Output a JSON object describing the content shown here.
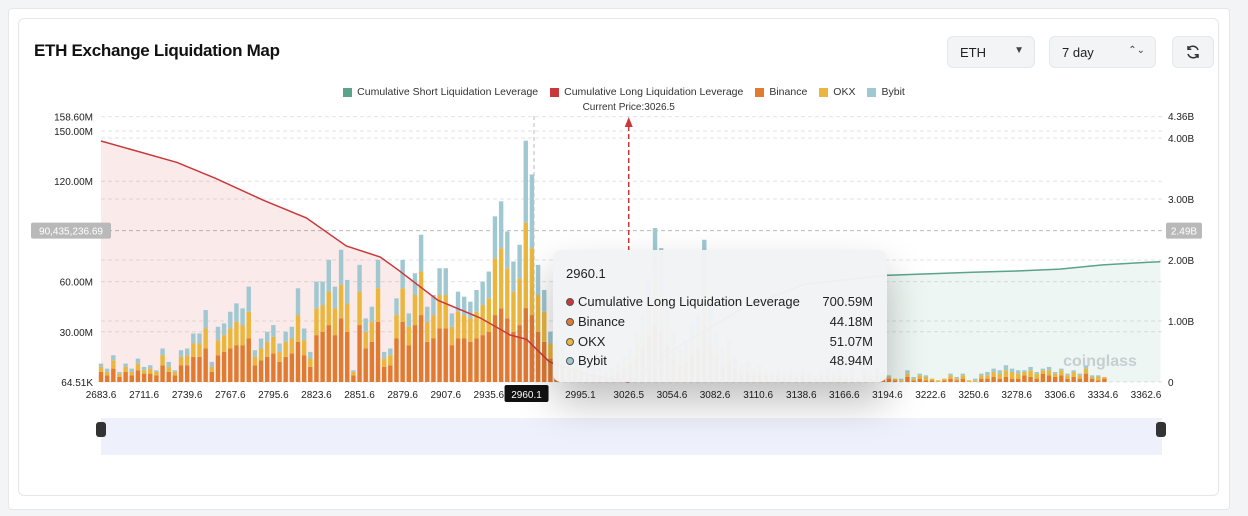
{
  "header": {
    "title": "ETH Exchange Liquidation Map",
    "coin_select": "ETH",
    "period_select": "7 day",
    "refresh_icon": "refresh-icon"
  },
  "colors": {
    "short": "#5ba38a",
    "long": "#c9393c",
    "binance": "#e07b30",
    "okx": "#eab63c",
    "bybit": "#9fc8d1"
  },
  "tooltip": {
    "price": "2960.1",
    "rows": [
      {
        "label": "Cumulative Long Liquidation Leverage",
        "value": "700.59M",
        "color": "#c9393c"
      },
      {
        "label": "Binance",
        "value": "44.18M",
        "color": "#e07b30"
      },
      {
        "label": "OKX",
        "value": "51.07M",
        "color": "#eab63c"
      },
      {
        "label": "Bybit",
        "value": "48.94M",
        "color": "#9fc8d1"
      }
    ]
  },
  "watermark": "coinglass",
  "chart_data": {
    "type": "bar",
    "legend": [
      "Cumulative Short Liquidation Leverage",
      "Cumulative Long Liquidation Leverage",
      "Binance",
      "OKX",
      "Bybit"
    ],
    "legend_placement": "top",
    "current_price_label": "Current Price:3026.5",
    "current_price": 3026.5,
    "xlim": [
      2683.6,
      3372
    ],
    "x_ticks": [
      "2683.6",
      "2711.6",
      "2739.6",
      "2767.6",
      "2795.6",
      "2823.6",
      "2851.6",
      "2879.6",
      "2907.6",
      "2935.6",
      "2960.1",
      "2995.1",
      "3026.5",
      "3054.6",
      "3082.6",
      "3110.6",
      "3138.6",
      "3166.6",
      "3194.6",
      "3222.6",
      "3250.6",
      "3278.6",
      "3306.6",
      "3334.6",
      "3362.6"
    ],
    "highlighted_tick": "2960.1",
    "y_left": {
      "ticks": [
        "158.60M",
        "150.00M",
        "120.00M",
        "60.00M",
        "30.00M",
        "64.51K"
      ],
      "tick_values": [
        158.6,
        150,
        120,
        60,
        30,
        0
      ],
      "ylim": [
        0,
        158.6
      ],
      "unit": "M"
    },
    "y_right": {
      "ticks": [
        "4.36B",
        "4.00B",
        "3.00B",
        "2.00B",
        "1.00B",
        "0"
      ],
      "tick_values": [
        4.36,
        4,
        3,
        2,
        1,
        0
      ],
      "ylim": [
        0,
        4.36
      ],
      "unit": "B"
    },
    "crosshair": {
      "left_label": "90,435,236.69",
      "right_label": "2.49B",
      "value_m": 90.44
    },
    "grid": true,
    "price_start": 2683.6,
    "price_step": 4,
    "stacks_binance_okx_bybit_M": [
      [
        6,
        3,
        2
      ],
      [
        4,
        2,
        2
      ],
      [
        8,
        5,
        3
      ],
      [
        3,
        2,
        1
      ],
      [
        6,
        3,
        2
      ],
      [
        4,
        2,
        2
      ],
      [
        7,
        4,
        3
      ],
      [
        5,
        2,
        2
      ],
      [
        5,
        3,
        2
      ],
      [
        4,
        2,
        1
      ],
      [
        10,
        6,
        4
      ],
      [
        6,
        3,
        3
      ],
      [
        4,
        2,
        1
      ],
      [
        10,
        5,
        4
      ],
      [
        10,
        6,
        4
      ],
      [
        15,
        8,
        6
      ],
      [
        15,
        8,
        6
      ],
      [
        20,
        12,
        11
      ],
      [
        6,
        3,
        3
      ],
      [
        16,
        9,
        8
      ],
      [
        18,
        10,
        7
      ],
      [
        20,
        12,
        10
      ],
      [
        22,
        14,
        11
      ],
      [
        22,
        12,
        10
      ],
      [
        26,
        16,
        15
      ],
      [
        10,
        5,
        4
      ],
      [
        13,
        7,
        6
      ],
      [
        15,
        9,
        6
      ],
      [
        17,
        10,
        7
      ],
      [
        12,
        6,
        5
      ],
      [
        15,
        9,
        6
      ],
      [
        17,
        9,
        7
      ],
      [
        24,
        16,
        16
      ],
      [
        16,
        9,
        7
      ],
      [
        9,
        5,
        4
      ],
      [
        28,
        16,
        16
      ],
      [
        30,
        16,
        14
      ],
      [
        34,
        20,
        19
      ],
      [
        28,
        16,
        13
      ],
      [
        38,
        20,
        21
      ],
      [
        30,
        17,
        14
      ],
      [
        4,
        2,
        1
      ],
      [
        34,
        20,
        16
      ],
      [
        20,
        10,
        8
      ],
      [
        24,
        12,
        9
      ],
      [
        36,
        20,
        17
      ],
      [
        9,
        5,
        4
      ],
      [
        10,
        6,
        4
      ],
      [
        26,
        14,
        10
      ],
      [
        36,
        20,
        17
      ],
      [
        22,
        11,
        8
      ],
      [
        34,
        18,
        13
      ],
      [
        40,
        26,
        22
      ],
      [
        24,
        12,
        9
      ],
      [
        26,
        14,
        12
      ],
      [
        32,
        20,
        16
      ],
      [
        32,
        20,
        16
      ],
      [
        22,
        11,
        8
      ],
      [
        26,
        16,
        12
      ],
      [
        26,
        14,
        11
      ],
      [
        24,
        14,
        10
      ],
      [
        26,
        16,
        13
      ],
      [
        28,
        18,
        14
      ],
      [
        30,
        20,
        16
      ],
      [
        40,
        34,
        25
      ],
      [
        44,
        36,
        28
      ],
      [
        38,
        30,
        22
      ],
      [
        30,
        24,
        18
      ],
      [
        34,
        28,
        20
      ],
      [
        44.18,
        51.07,
        48.94
      ],
      [
        40,
        40,
        44
      ],
      [
        30,
        22,
        18
      ],
      [
        24,
        18,
        13
      ],
      [
        14,
        9,
        7
      ],
      [
        12,
        7,
        6
      ],
      [
        10,
        6,
        4
      ],
      [
        8,
        4,
        3
      ],
      [
        6,
        3,
        3
      ],
      [
        5,
        3,
        2
      ],
      [
        4,
        2,
        2
      ],
      [
        5,
        3,
        2
      ],
      [
        4,
        2,
        2
      ],
      [
        3,
        2,
        1
      ],
      [
        4,
        3,
        2
      ],
      [
        6,
        3,
        2
      ],
      [
        8,
        4,
        3
      ],
      [
        10,
        6,
        4
      ],
      [
        14,
        9,
        7
      ],
      [
        20,
        12,
        8
      ],
      [
        28,
        18,
        14
      ],
      [
        36,
        26,
        30
      ],
      [
        30,
        24,
        26
      ],
      [
        22,
        14,
        12
      ],
      [
        14,
        8,
        8
      ],
      [
        10,
        6,
        4
      ],
      [
        12,
        7,
        6
      ],
      [
        16,
        10,
        9
      ],
      [
        20,
        12,
        8
      ],
      [
        34,
        24,
        27
      ],
      [
        22,
        14,
        14
      ],
      [
        14,
        8,
        8
      ],
      [
        10,
        6,
        4
      ],
      [
        12,
        7,
        6
      ],
      [
        8,
        4,
        3
      ],
      [
        5,
        3,
        2
      ],
      [
        6,
        3,
        3
      ],
      [
        4,
        2,
        2
      ],
      [
        5,
        3,
        2
      ],
      [
        4,
        2,
        1
      ],
      [
        3,
        2,
        1
      ],
      [
        4,
        2,
        2
      ],
      [
        3,
        2,
        1
      ],
      [
        4,
        2,
        1
      ],
      [
        3,
        1,
        1
      ],
      [
        4,
        2,
        1
      ],
      [
        3,
        2,
        1
      ],
      [
        2,
        1,
        1
      ],
      [
        3,
        2,
        1
      ],
      [
        4,
        3,
        2
      ],
      [
        3,
        2,
        1
      ],
      [
        4,
        2,
        2
      ],
      [
        2,
        2,
        1
      ],
      [
        3,
        3,
        2
      ],
      [
        1,
        1,
        1
      ],
      [
        4,
        2,
        2
      ],
      [
        2,
        2,
        1
      ],
      [
        4,
        3,
        2
      ],
      [
        3,
        2,
        1
      ],
      [
        2,
        1,
        1
      ],
      [
        1,
        1,
        0
      ],
      [
        0,
        1,
        1
      ],
      [
        3,
        2,
        2
      ],
      [
        1,
        1,
        1
      ],
      [
        2,
        2,
        1
      ],
      [
        1,
        2,
        1
      ],
      [
        1,
        1,
        0
      ],
      [
        0,
        1,
        0
      ],
      [
        1,
        1,
        0
      ],
      [
        2,
        2,
        1
      ],
      [
        1,
        1,
        1
      ],
      [
        2,
        2,
        1
      ],
      [
        0,
        1,
        0
      ],
      [
        0,
        1,
        1
      ],
      [
        2,
        2,
        1
      ],
      [
        2,
        2,
        2
      ],
      [
        3,
        3,
        2
      ],
      [
        2,
        3,
        2
      ],
      [
        3,
        4,
        3
      ],
      [
        2,
        4,
        2
      ],
      [
        2,
        3,
        2
      ],
      [
        4,
        2,
        1
      ],
      [
        3,
        4,
        2
      ],
      [
        2,
        3,
        1
      ],
      [
        5,
        2,
        1
      ],
      [
        4,
        3,
        2
      ],
      [
        3,
        2,
        1
      ],
      [
        4,
        3,
        1
      ],
      [
        2,
        2,
        1
      ],
      [
        3,
        3,
        1
      ],
      [
        2,
        2,
        1
      ],
      [
        5,
        3,
        2
      ],
      [
        2,
        1,
        1
      ],
      [
        1,
        2,
        1
      ],
      [
        2,
        1,
        0
      ]
    ],
    "series_long_cumulative_B": {
      "x": [
        2683.6,
        2733,
        2758,
        2789,
        2817,
        2843,
        2865,
        2876.6,
        2902.6,
        2930,
        2949.5,
        2960.1,
        2975,
        3000,
        3026.5
      ],
      "y": [
        3.95,
        3.6,
        3.34,
        2.98,
        2.69,
        2.23,
        2.05,
        1.84,
        1.34,
        1.05,
        0.77,
        0.7,
        0.33,
        0.12,
        0
      ]
    },
    "series_short_cumulative_B": {
      "x": [
        3026.5,
        3060,
        3100,
        3140,
        3194.6,
        3250,
        3278.6,
        3306.6,
        3334.6,
        3362.6,
        3372
      ],
      "y": [
        0,
        0.6,
        1.2,
        1.6,
        1.75,
        1.8,
        1.82,
        1.85,
        1.92,
        1.96,
        1.97
      ]
    }
  }
}
